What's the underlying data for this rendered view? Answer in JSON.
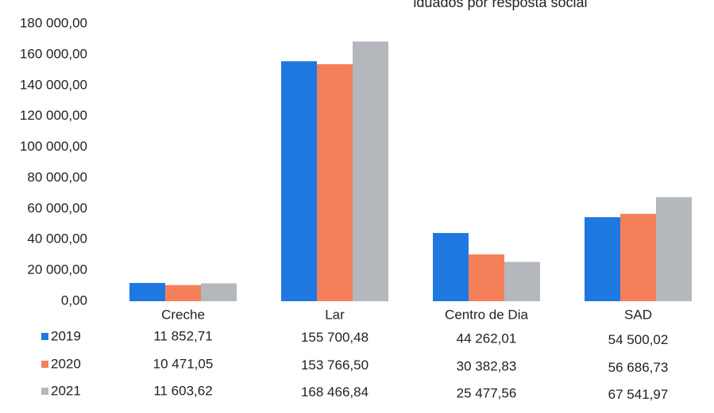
{
  "chart_data": {
    "type": "bar",
    "title": "iduados por resposta social",
    "categories": [
      "Creche",
      "Lar",
      "Centro de Dia",
      "SAD"
    ],
    "series": [
      {
        "name": "2019",
        "color": "#1f78e0",
        "values": [
          11852.71,
          155700.48,
          44262.01,
          54500.02
        ],
        "value_labels": [
          "11 852,71",
          "155 700,48",
          "44 262,01",
          "54 500,02"
        ]
      },
      {
        "name": "2020",
        "color": "#f4805a",
        "values": [
          10471.05,
          153766.5,
          30382.83,
          56686.73
        ],
        "value_labels": [
          "10 471,05",
          "153 766,50",
          "30 382,83",
          "56 686,73"
        ]
      },
      {
        "name": "2021",
        "color": "#b4b8bd",
        "values": [
          11603.62,
          168466.84,
          25477.56,
          67541.97
        ],
        "value_labels": [
          "11 603,62",
          "168 466,84",
          "25 477,56",
          "67 541,97"
        ]
      }
    ],
    "ylim": [
      0,
      180000
    ],
    "yticks": [
      {
        "value": 0,
        "label": "0,00"
      },
      {
        "value": 20000,
        "label": "20 000,00"
      },
      {
        "value": 40000,
        "label": "40 000,00"
      },
      {
        "value": 60000,
        "label": "60 000,00"
      },
      {
        "value": 80000,
        "label": "80 000,00"
      },
      {
        "value": 100000,
        "label": "100 000,00"
      },
      {
        "value": 120000,
        "label": "120 000,00"
      },
      {
        "value": 140000,
        "label": "140 000,00"
      },
      {
        "value": 160000,
        "label": "160 000,00"
      },
      {
        "value": 180000,
        "label": "180 000,00"
      }
    ],
    "grid": false
  }
}
